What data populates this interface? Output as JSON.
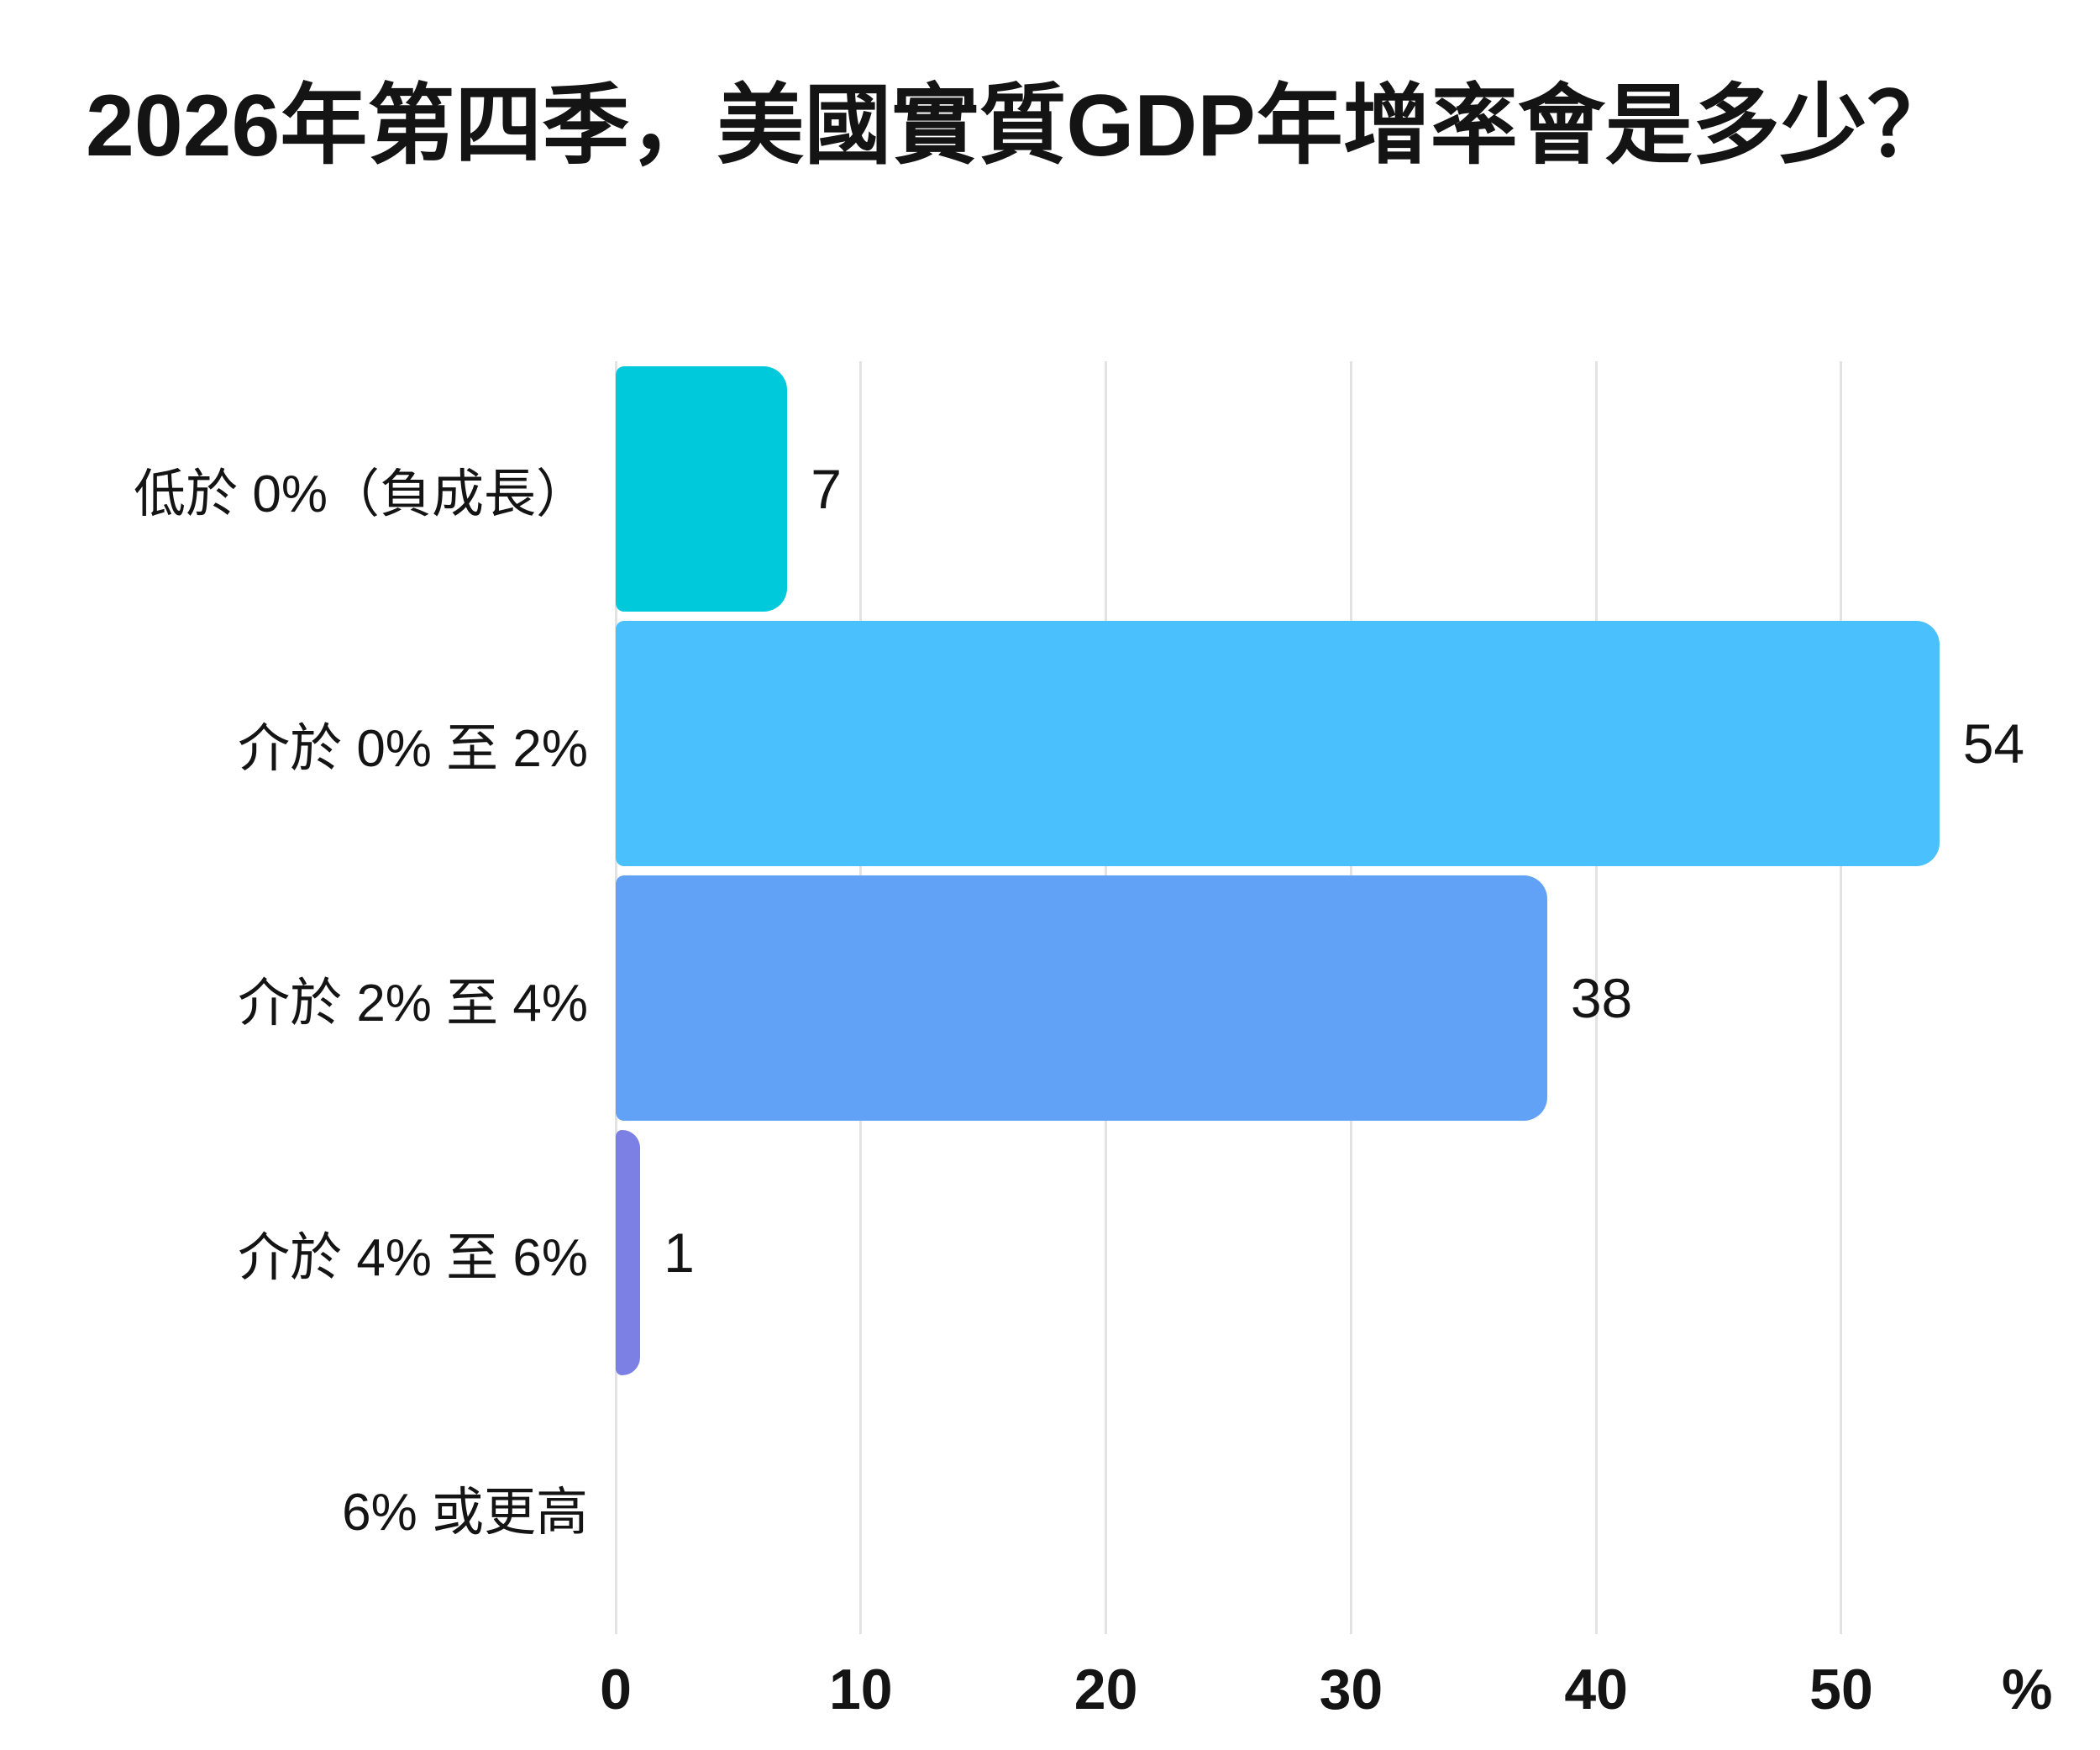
{
  "title": "2026年第四季，美國實質GDP年增率會是多少？",
  "chart_data": {
    "type": "bar",
    "orientation": "horizontal",
    "title": "2026年第四季，美國實質GDP年增率會是多少？",
    "categories": [
      "低於 0%（負成長）",
      "介於 0% 至 2%",
      "介於 2% 至 4%",
      "介於 4% 至 6%",
      "6% 或更高"
    ],
    "values": [
      7,
      54,
      38,
      1,
      0
    ],
    "value_labels": [
      "7",
      "54",
      "38",
      "1",
      ""
    ],
    "bar_colors": [
      "#00c9db",
      "#4ac0fc",
      "#62a2f6",
      "#7c7fe3",
      "#e3e3e3"
    ],
    "x_ticks": [
      0,
      10,
      20,
      30,
      40,
      50
    ],
    "x_unit": "%",
    "xlim": [
      0,
      57.3
    ],
    "grid": "vertical-only",
    "legend": "none",
    "background": "#ffffff",
    "gridline_color": "#e3e3e3",
    "text_color": "#141414"
  }
}
